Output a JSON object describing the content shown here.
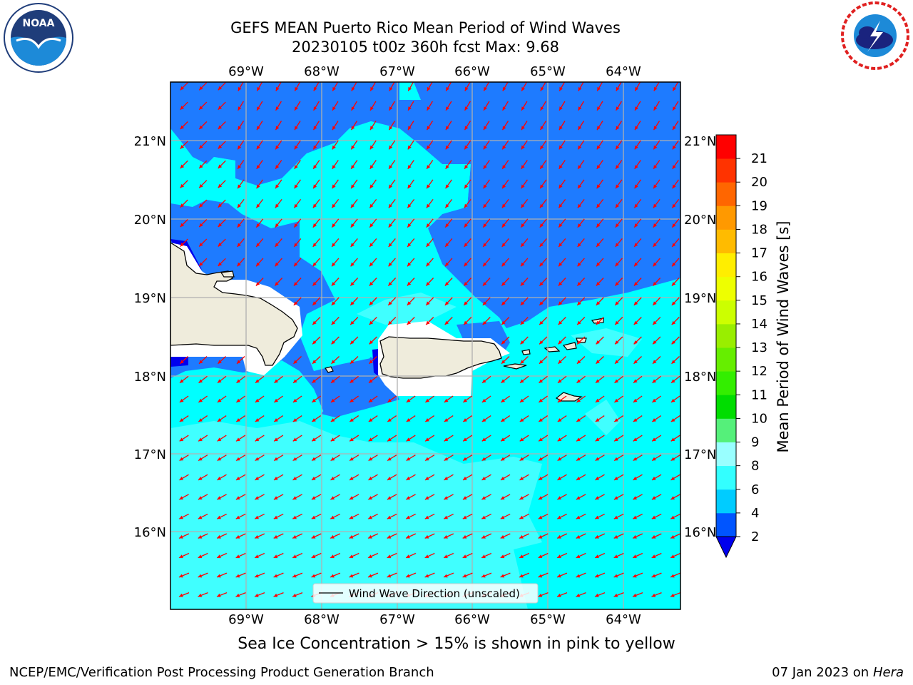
{
  "header": {
    "title_line1": "GEFS MEAN Puerto Rico Mean Period of Wind Waves",
    "title_line2": "20230105 t00z 360h fcst   Max: 9.68"
  },
  "logos": {
    "left": {
      "name": "NOAA",
      "ring_text": "NATIONAL OCEANIC AND ATMOSPHERIC ADMINISTRATION · U.S. DEPARTMENT OF COMMERCE"
    },
    "right": {
      "name": "NATIONAL WEATHER SERVICE"
    }
  },
  "map": {
    "lon_labels": [
      "69°W",
      "68°W",
      "67°W",
      "66°W",
      "65°W",
      "64°W"
    ],
    "lat_labels": [
      "21°N",
      "20°N",
      "19°N",
      "18°N",
      "17°N",
      "16°N"
    ],
    "legend_label": "Wind Wave Direction (unscaled)",
    "arrow_color": "#ff0000",
    "land_color": "#efecdc"
  },
  "colorbar": {
    "label": "Mean Period of Wind Waves [s]",
    "tick_labels": [
      "2",
      "4",
      "6",
      "8",
      "9",
      "10",
      "11",
      "12",
      "13",
      "14",
      "15",
      "16",
      "17",
      "18",
      "19",
      "20",
      "21"
    ],
    "colors": [
      "#0055ff",
      "#00ccff",
      "#33ffff",
      "#99ffff",
      "#55f07a",
      "#00dd00",
      "#33ee00",
      "#66ee00",
      "#99ee00",
      "#ccff00",
      "#eeff00",
      "#ffee00",
      "#ffbb00",
      "#ff9900",
      "#ff6600",
      "#ff3300",
      "#ff0000"
    ],
    "extend_color": "#0000ee"
  },
  "footer": {
    "note": "Sea Ice Concentration > 15% is shown in pink to yellow",
    "left": "NCEP/EMC/Verification Post Processing Product Generation Branch",
    "right_prefix": "07 Jan 2023 on ",
    "right_host": "Hera"
  }
}
